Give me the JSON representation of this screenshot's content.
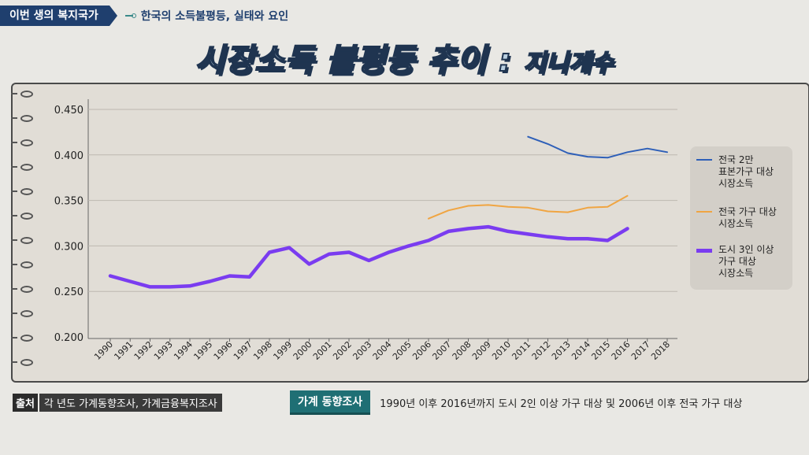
{
  "header": {
    "section": "이번 생의 복지국가",
    "subtitle": "한국의 소득불평등, 실태와 요인"
  },
  "title": {
    "main": "시장소득 불평등 추이",
    "sep": " : ",
    "sub": "지니계수"
  },
  "chart_data": {
    "type": "line",
    "x": [
      "1990",
      "1991",
      "1992",
      "1993",
      "1994",
      "1995",
      "1996",
      "1997",
      "1998",
      "1999",
      "2000",
      "2001",
      "2002",
      "2003",
      "2004",
      "2005",
      "2006",
      "2007",
      "2008",
      "2009",
      "2010",
      "2011",
      "2012",
      "2013",
      "2014",
      "2015",
      "2016",
      "2017",
      "2018"
    ],
    "ylim": [
      0.2,
      0.45
    ],
    "yticks": [
      "0.450",
      "0.400",
      "0.350",
      "0.300",
      "0.250",
      "0.200"
    ],
    "ytick_values": [
      0.45,
      0.4,
      0.35,
      0.3,
      0.25,
      0.2
    ],
    "grid": true,
    "legend_position": "right",
    "series": [
      {
        "name": "전국 2만 표본가구 대상 시장소득",
        "label_lines": [
          "전국 2만",
          "표본가구 대상",
          "시장소득"
        ],
        "color": "#2e5fb8",
        "width": 2,
        "values": [
          null,
          null,
          null,
          null,
          null,
          null,
          null,
          null,
          null,
          null,
          null,
          null,
          null,
          null,
          null,
          null,
          null,
          null,
          null,
          null,
          null,
          0.42,
          0.412,
          0.402,
          0.398,
          0.397,
          0.403,
          0.407,
          0.403
        ]
      },
      {
        "name": "전국 가구 대상 시장소득",
        "label_lines": [
          "전국 가구 대상",
          "시장소득"
        ],
        "color": "#f0a542",
        "width": 2,
        "values": [
          null,
          null,
          null,
          null,
          null,
          null,
          null,
          null,
          null,
          null,
          null,
          null,
          null,
          null,
          null,
          null,
          0.33,
          0.339,
          0.344,
          0.345,
          0.343,
          0.342,
          0.338,
          0.337,
          0.342,
          0.343,
          0.355,
          null,
          null
        ]
      },
      {
        "name": "도시 3인 이상 가구 대상 시장소득",
        "label_lines": [
          "도시 3인 이상",
          "가구 대상",
          "시장소득"
        ],
        "color": "#7a3cf0",
        "width": 4.5,
        "values": [
          0.267,
          0.261,
          0.255,
          0.255,
          0.256,
          0.261,
          0.267,
          0.266,
          0.293,
          0.298,
          0.28,
          0.291,
          0.293,
          0.284,
          0.293,
          0.3,
          0.306,
          0.316,
          0.319,
          0.321,
          0.316,
          0.313,
          0.31,
          0.308,
          0.308,
          0.306,
          0.319,
          null,
          null
        ]
      }
    ]
  },
  "footer": {
    "source_tag": "출처",
    "source_text": "각 년도 가계동향조사, 가계금융복지조사",
    "survey_tag": "가계 동향조사",
    "survey_text": "1990년 이후 2016년까지 도시 2인 이상 가구 대상 및 2006년 이후 전국 가구 대상"
  }
}
